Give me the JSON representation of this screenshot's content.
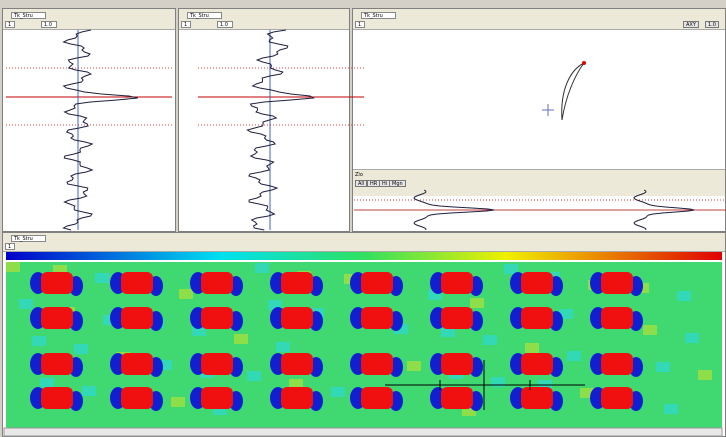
{
  "windows": [
    {
      "title": "Tk_Stru",
      "fields": [
        "1",
        "1.0"
      ]
    },
    {
      "title": "Tk_Stru",
      "fields": [
        "1",
        "1.0"
      ]
    },
    {
      "title": "Tk_Stru",
      "fields": [
        "1"
      ],
      "buttons": [
        "AXY",
        "1.0"
      ]
    },
    {
      "title": "Tk_Stru",
      "fields": [
        "1"
      ]
    }
  ],
  "subpanel": {
    "title": "Zlo",
    "buttons": [
      "All",
      "HR",
      "Hi",
      "Mgn"
    ]
  }
}
